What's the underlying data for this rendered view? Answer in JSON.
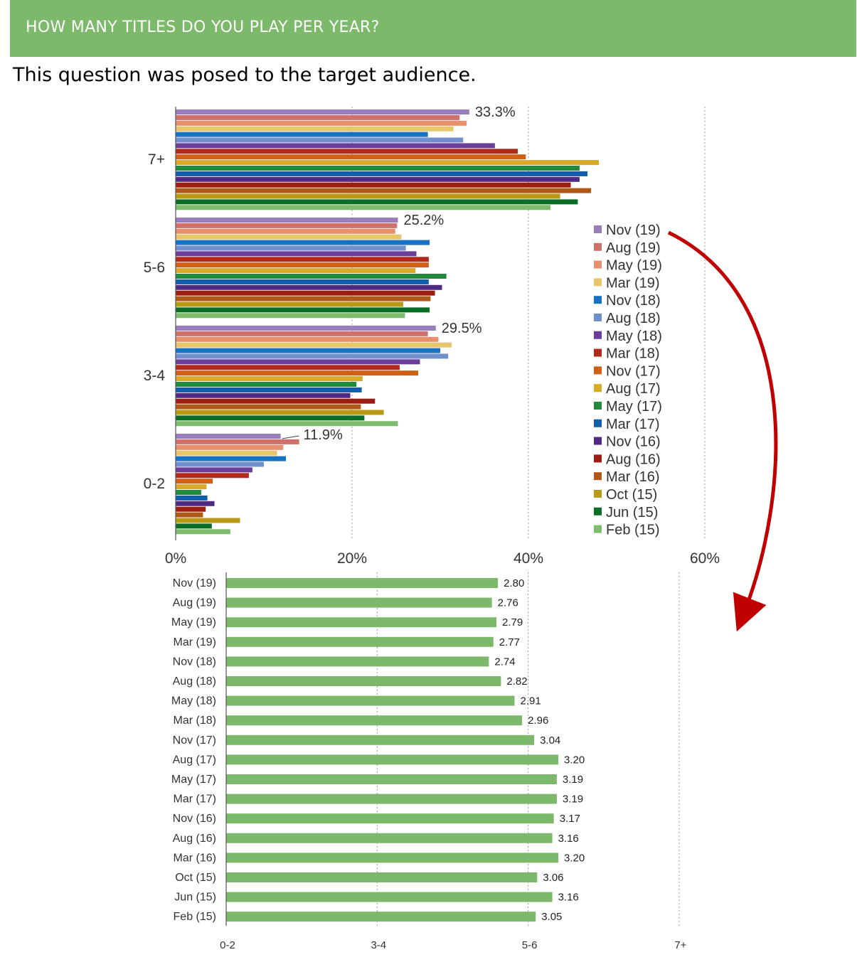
{
  "header": {
    "title": "HOW MANY TITLES DO YOU PLAY PER YEAR?"
  },
  "subtitle": "This question was posed to the target audience.",
  "colors": {
    "header_bg": "#7db96a",
    "arrow": "#c00000",
    "bar2": "#7db96a"
  },
  "chart_data": [
    {
      "type": "bar",
      "orientation": "horizontal",
      "categories": [
        "7+",
        "5-6",
        "3-4",
        "0-2"
      ],
      "xlim": [
        0,
        60
      ],
      "xticks": [
        "0%",
        "20%",
        "40%",
        "60%"
      ],
      "grid": true,
      "legend_position": "right",
      "annotations": [
        "33.3%",
        "25.2%",
        "29.5%",
        "11.9%"
      ],
      "series": [
        {
          "name": "Nov (19)",
          "color": "#9a7dbb",
          "values": [
            33.3,
            25.2,
            29.5,
            11.9
          ]
        },
        {
          "name": "Aug (19)",
          "color": "#d0706a",
          "values": [
            32.2,
            25.1,
            28.6,
            14.0
          ]
        },
        {
          "name": "May (19)",
          "color": "#e8906b",
          "values": [
            33.0,
            24.9,
            29.8,
            12.2
          ]
        },
        {
          "name": "Mar (19)",
          "color": "#e8c56a",
          "values": [
            31.5,
            25.6,
            31.3,
            11.5
          ]
        },
        {
          "name": "Nov (18)",
          "color": "#1673c4",
          "values": [
            28.6,
            28.8,
            30.0,
            12.5
          ]
        },
        {
          "name": "Aug (18)",
          "color": "#6f8fcf",
          "values": [
            32.6,
            26.1,
            30.9,
            10.0
          ]
        },
        {
          "name": "May (18)",
          "color": "#6a3d9a",
          "values": [
            36.2,
            27.3,
            27.7,
            8.7
          ]
        },
        {
          "name": "Mar (18)",
          "color": "#b22a1a",
          "values": [
            38.8,
            28.7,
            25.4,
            8.3
          ]
        },
        {
          "name": "Nov (17)",
          "color": "#d05f12",
          "values": [
            39.7,
            28.7,
            27.5,
            4.2
          ]
        },
        {
          "name": "Aug (17)",
          "color": "#d9a92a",
          "values": [
            48.0,
            27.2,
            21.2,
            3.5
          ]
        },
        {
          "name": "May (17)",
          "color": "#1e8a3a",
          "values": [
            45.8,
            30.7,
            20.5,
            2.9
          ]
        },
        {
          "name": "Mar (17)",
          "color": "#0e5fac",
          "values": [
            46.7,
            28.7,
            21.1,
            3.6
          ]
        },
        {
          "name": "Nov (16)",
          "color": "#4e2a84",
          "values": [
            45.8,
            30.2,
            19.8,
            4.4
          ]
        },
        {
          "name": "Aug (16)",
          "color": "#9b1c12",
          "values": [
            44.8,
            29.4,
            22.6,
            3.4
          ]
        },
        {
          "name": "Mar (16)",
          "color": "#b0581a",
          "values": [
            47.1,
            28.9,
            21.0,
            3.1
          ]
        },
        {
          "name": "Oct (15)",
          "color": "#b89a16",
          "values": [
            43.6,
            25.8,
            23.6,
            7.3
          ]
        },
        {
          "name": "Jun (15)",
          "color": "#0a6e26",
          "values": [
            45.6,
            28.8,
            21.4,
            4.1
          ]
        },
        {
          "name": "Feb (15)",
          "color": "#7dbb6e",
          "values": [
            42.5,
            26.0,
            25.2,
            6.2
          ]
        }
      ]
    },
    {
      "type": "bar",
      "orientation": "horizontal",
      "categories": [
        "Nov (19)",
        "Aug (19)",
        "May (19)",
        "Mar (19)",
        "Nov (18)",
        "Aug (18)",
        "May (18)",
        "Mar (18)",
        "Nov (17)",
        "Aug (17)",
        "May (17)",
        "Mar (17)",
        "Nov (16)",
        "Aug (16)",
        "Mar (16)",
        "Oct (15)",
        "Jun (15)",
        "Feb (15)"
      ],
      "values": [
        2.8,
        2.76,
        2.79,
        2.77,
        2.74,
        2.82,
        2.91,
        2.96,
        3.04,
        3.2,
        3.19,
        3.19,
        3.17,
        3.16,
        3.2,
        3.06,
        3.16,
        3.05
      ],
      "value_labels": [
        "2.80",
        "2.76",
        "2.79",
        "2.77",
        "2.74",
        "2.82",
        "2.91",
        "2.96",
        "3.04",
        "3.20",
        "3.19",
        "3.19",
        "3.17",
        "3.16",
        "3.20",
        "3.06",
        "3.16",
        "3.05"
      ],
      "xlim": [
        1,
        4
      ],
      "xticks": [
        "0-2",
        "3-4",
        "5-6",
        "7+"
      ],
      "grid": true
    }
  ]
}
